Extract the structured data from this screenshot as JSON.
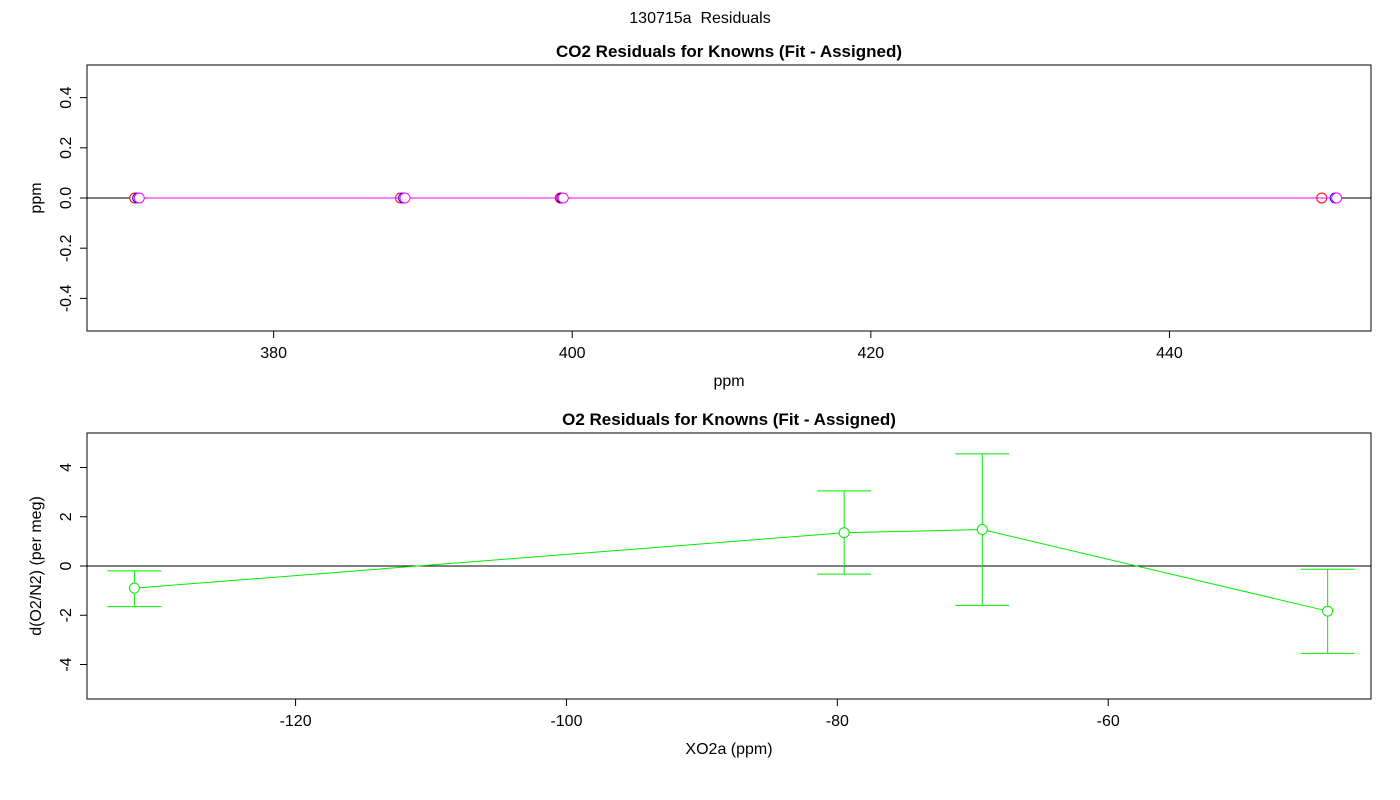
{
  "page": {
    "title": "130715a  Residuals"
  },
  "colors": {
    "red": "#ff0000",
    "blue": "#0000ff",
    "magenta": "#ff00ff",
    "green": "#00ee00",
    "zero_line": "#000000"
  },
  "chart_data": [
    {
      "type": "scatter",
      "title": "CO2 Residuals for Knowns (Fit - Assigned)",
      "xlabel": "ppm",
      "ylabel": "ppm",
      "xlim": [
        367.5,
        453.5
      ],
      "ylim": [
        -0.53,
        0.53
      ],
      "xticks": [
        380,
        400,
        420,
        440
      ],
      "yticks": [
        -0.4,
        -0.2,
        0.0,
        0.2,
        0.4
      ],
      "ytick_labels": [
        "-0.4",
        "-0.2",
        "0.0",
        "0.2",
        "0.4"
      ],
      "grid": false,
      "zero_line": true,
      "series": [
        {
          "color": "red",
          "x": [
            370.7,
            388.5,
            399.2,
            450.2
          ],
          "y": [
            0.0,
            0.0,
            0.0,
            0.0
          ]
        },
        {
          "color": "blue",
          "x": [
            370.9,
            388.7,
            399.3,
            451.1
          ],
          "y": [
            0.0,
            0.0,
            0.0,
            0.0
          ]
        },
        {
          "color": "magenta",
          "x": [
            371.0,
            388.8,
            399.4,
            451.2
          ],
          "y": [
            0.0,
            0.0,
            0.0,
            0.0
          ]
        }
      ]
    },
    {
      "type": "line",
      "title": "O2 Residuals for Knowns (Fit - Assigned)",
      "xlabel": "XO2a (ppm)",
      "ylabel": "d(O2/N2) (per meg)",
      "xlim": [
        -135.4,
        -40.6
      ],
      "ylim": [
        -5.4,
        5.4
      ],
      "xticks": [
        -120,
        -100,
        -80,
        -60
      ],
      "yticks": [
        -4,
        -2,
        0,
        2,
        4
      ],
      "grid": false,
      "zero_line": true,
      "series": [
        {
          "color": "green",
          "x": [
            -131.9,
            -79.5,
            -69.3,
            -43.8
          ],
          "y": [
            -0.9,
            1.35,
            1.48,
            -1.83
          ],
          "error_low": [
            -1.65,
            -0.33,
            -1.6,
            -3.55
          ],
          "error_high": [
            -0.2,
            3.05,
            4.55,
            -0.13
          ]
        }
      ]
    }
  ]
}
